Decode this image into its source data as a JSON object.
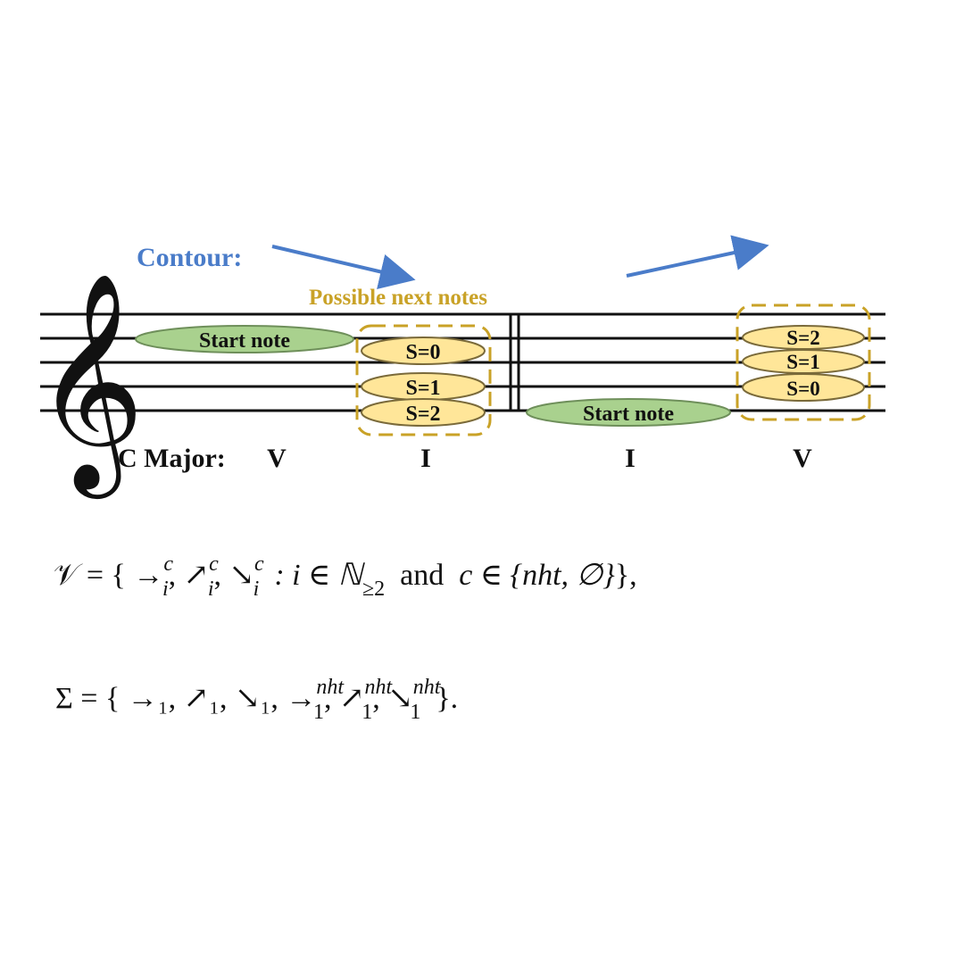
{
  "labels": {
    "contour": "Contour:",
    "possible_next_notes": "Possible next notes",
    "start_note": "Start note",
    "key_prefix": "C Major:",
    "chords": [
      "V",
      "I",
      "I",
      "V"
    ],
    "measure1_options": [
      "S=0",
      "S=1",
      "S=2"
    ],
    "measure2_options": [
      "S=2",
      "S=1",
      "S=0"
    ]
  },
  "colors": {
    "contour_blue": "#4a7cc9",
    "gold": "#c9a227",
    "note_green": "#a9d18e",
    "note_yellow": "#ffe699",
    "staff": "#111111"
  },
  "equations": {
    "V_line": {
      "lhs": "𝒱 = {",
      "t1": "→",
      "t1sup": "c",
      "t1sub": "i",
      "t2": "↗",
      "t2sup": "c",
      "t2sub": "i",
      "t3": "↘",
      "t3sup": "c",
      "t3sub": "i",
      "cond": ":  i ∈ ℕ",
      "cond_sub": "≥2",
      "and": "and",
      "set": "c ∈ {nht, ∅}",
      "rhs": "},"
    },
    "Sigma_line": {
      "lhs": "Σ = {",
      "t1": "→₁,",
      "t2": "↗₁,",
      "t3": "↘₁,",
      "t4": "→",
      "t4sup": "nht",
      "t4sub": "1",
      "t5": "↗",
      "t5sup": "nht",
      "t5sub": "1",
      "t6": "↘",
      "t6sup": "nht",
      "t6sub": "1",
      "rhs": "}."
    }
  }
}
